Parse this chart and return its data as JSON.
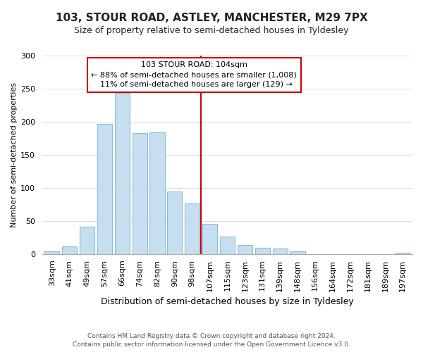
{
  "title": "103, STOUR ROAD, ASTLEY, MANCHESTER, M29 7PX",
  "subtitle": "Size of property relative to semi-detached houses in Tyldesley",
  "xlabel": "Distribution of semi-detached houses by size in Tyldesley",
  "ylabel": "Number of semi-detached properties",
  "footer_line1": "Contains HM Land Registry data © Crown copyright and database right 2024.",
  "footer_line2": "Contains public sector information licensed under the Open Government Licence v3.0.",
  "bar_labels": [
    "33sqm",
    "41sqm",
    "49sqm",
    "57sqm",
    "66sqm",
    "74sqm",
    "82sqm",
    "90sqm",
    "98sqm",
    "107sqm",
    "115sqm",
    "123sqm",
    "131sqm",
    "139sqm",
    "148sqm",
    "156sqm",
    "164sqm",
    "172sqm",
    "181sqm",
    "189sqm",
    "197sqm"
  ],
  "bar_values": [
    4,
    12,
    42,
    197,
    244,
    183,
    184,
    95,
    77,
    46,
    27,
    14,
    10,
    9,
    4,
    0,
    0,
    0,
    0,
    0,
    2
  ],
  "bar_color": "#c6dff0",
  "bar_edge_color": "#8bbbd9",
  "marker_index": 9,
  "marker_label": "103 STOUR ROAD: 104sqm",
  "marker_smaller_pct": "88%",
  "marker_smaller_count": "1,008",
  "marker_larger_pct": "11%",
  "marker_larger_count": "129",
  "marker_color": "#cc0000",
  "ylim": [
    0,
    300
  ],
  "yticks": [
    0,
    50,
    100,
    150,
    200,
    250,
    300
  ],
  "annotation_box_facecolor": "#ffffff",
  "annotation_box_edgecolor": "#cc0000",
  "background_color": "#ffffff",
  "grid_color": "#d0d8e0",
  "title_fontsize": 11,
  "subtitle_fontsize": 9,
  "ylabel_fontsize": 8,
  "xlabel_fontsize": 9,
  "tick_fontsize": 8,
  "annotation_fontsize": 8,
  "footer_fontsize": 6.5,
  "footer_color": "#555555"
}
